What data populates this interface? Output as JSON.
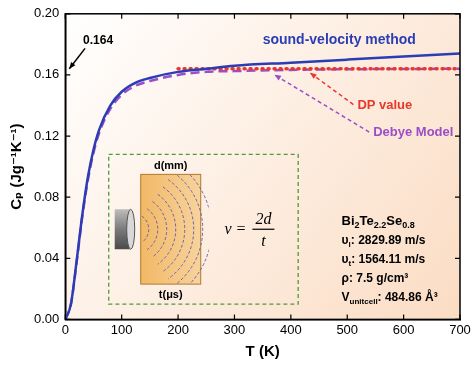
{
  "chart_data": {
    "type": "line",
    "x_label": "T (K)",
    "y_label": "Cₚ (Jg⁻¹K⁻¹)",
    "xlim": [
      0,
      700
    ],
    "xticks": [
      0,
      100,
      200,
      300,
      400,
      500,
      600,
      700
    ],
    "ylim": [
      0,
      0.2
    ],
    "yticks": [
      {
        "value": 0,
        "label": "0.00"
      },
      {
        "value": 0.04,
        "label": "0.04"
      },
      {
        "value": 0.08,
        "label": "0.08"
      },
      {
        "value": 0.12,
        "label": "0.12"
      },
      {
        "value": 0.16,
        "label": "0.16"
      },
      {
        "value": 0.2,
        "label": "0.20"
      }
    ],
    "grid": false,
    "series": [
      {
        "name": "sound-velocity method",
        "color": "#2b3db5",
        "line_style": "solid",
        "x": [
          0,
          10,
          20,
          30,
          40,
          50,
          60,
          80,
          100,
          125,
          150,
          200,
          250,
          300,
          400,
          500,
          600,
          700
        ],
        "values": [
          0,
          0.01,
          0.038,
          0.068,
          0.093,
          0.111,
          0.124,
          0.14,
          0.149,
          0.155,
          0.158,
          0.162,
          0.164,
          0.166,
          0.168,
          0.17,
          0.172,
          0.174
        ]
      },
      {
        "name": "DP value",
        "color": "#e8382b",
        "line_style": "dotted",
        "x": [
          200,
          700
        ],
        "values": [
          0.164,
          0.164
        ]
      },
      {
        "name": "Debye Model",
        "color": "#9b4dca",
        "line_style": "dashed",
        "x": [
          0,
          10,
          20,
          30,
          40,
          50,
          60,
          80,
          100,
          125,
          150,
          200,
          250,
          300,
          400,
          500,
          600,
          700
        ],
        "values": [
          0,
          0.01,
          0.037,
          0.067,
          0.091,
          0.109,
          0.122,
          0.138,
          0.147,
          0.153,
          0.156,
          0.16,
          0.162,
          0.1625,
          0.1633,
          0.1637,
          0.1639,
          0.164
        ]
      }
    ],
    "annotations": [
      "0.164"
    ],
    "inset": {
      "formula": [
        "v =",
        "2d",
        "t"
      ],
      "d_label": "d(mm)",
      "t_label": "t(μs)"
    },
    "material": {
      "formula": [
        "Bi",
        "2",
        "Te",
        "2.2",
        "Se",
        "0.8"
      ],
      "properties": [
        [
          "υ",
          "l",
          ": 2829.89 m/s"
        ],
        [
          "υ",
          "t",
          ": 1564.11 m/s"
        ],
        [
          "ρ: 7.5 g/cm³"
        ],
        [
          "V",
          "unitcell",
          ": 484.86 Å³"
        ]
      ]
    }
  }
}
